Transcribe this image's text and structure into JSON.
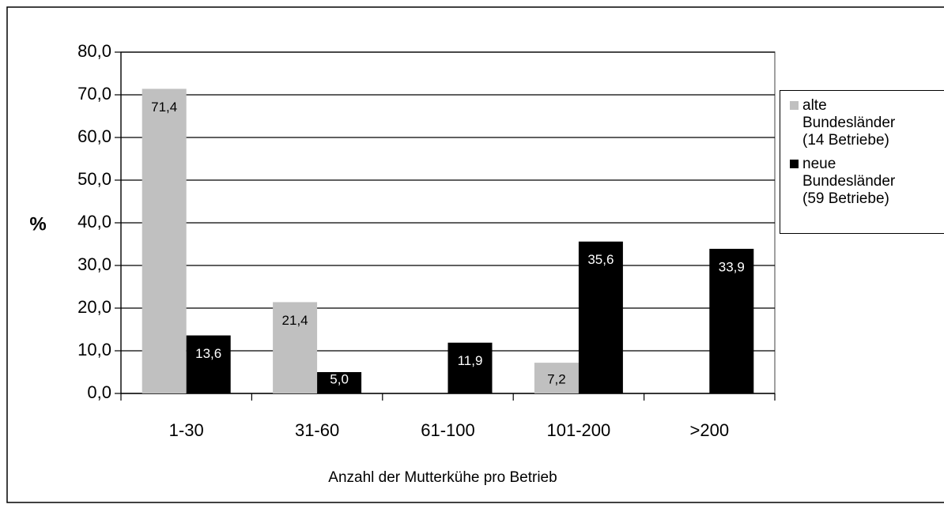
{
  "chart_data": {
    "type": "bar",
    "y_label": "%",
    "x_label": "Anzahl der Mutterkühe pro Betrieb",
    "categories": [
      "1-30",
      "31-60",
      "61-100",
      "101-200",
      ">200"
    ],
    "series": [
      {
        "name": "alte Bundesländer (14 Betriebe)",
        "color": "#c0c0c0",
        "label_color": "#000000",
        "values": [
          71.4,
          21.4,
          null,
          7.2,
          null
        ],
        "value_labels": [
          "71,4",
          "21,4",
          null,
          "7,2",
          null
        ]
      },
      {
        "name": "neue Bundesländer (59 Betriebe)",
        "color": "#000000",
        "label_color": "#ffffff",
        "values": [
          13.6,
          5.0,
          11.9,
          35.6,
          33.9
        ],
        "value_labels": [
          "13,6",
          "5,0",
          "11,9",
          "35,6",
          "33,9"
        ]
      }
    ],
    "ylim": [
      0,
      80
    ],
    "yticks": [
      {
        "value": 0,
        "label": "0,0"
      },
      {
        "value": 10,
        "label": "10,0"
      },
      {
        "value": 20,
        "label": "20,0"
      },
      {
        "value": 30,
        "label": "30,0"
      },
      {
        "value": 40,
        "label": "40,0"
      },
      {
        "value": 50,
        "label": "50,0"
      },
      {
        "value": 60,
        "label": "60,0"
      },
      {
        "value": 70,
        "label": "70,0"
      },
      {
        "value": 80,
        "label": "80,0"
      }
    ],
    "grid": true,
    "legend_position": "right"
  }
}
